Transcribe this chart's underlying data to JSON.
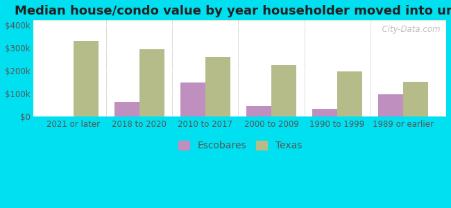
{
  "title": "Median house/condo value by year householder moved into unit",
  "categories": [
    "2021 or later",
    "2018 to 2020",
    "2010 to 2017",
    "2000 to 2009",
    "1990 to 1999",
    "1989 or earlier"
  ],
  "escobares": [
    0,
    65000,
    148000,
    45000,
    35000,
    97000
  ],
  "texas": [
    330000,
    295000,
    260000,
    225000,
    197000,
    152000
  ],
  "escobares_color": "#bf8fbf",
  "texas_color": "#b5bc8a",
  "background_outer": "#00e0f0",
  "yticks": [
    0,
    100000,
    200000,
    300000,
    400000
  ],
  "ytick_labels": [
    "$0",
    "$100k",
    "$200k",
    "$300k",
    "$400k"
  ],
  "ylim": [
    0,
    420000
  ],
  "watermark": "  City-Data.com",
  "bar_width": 0.38,
  "title_fontsize": 13,
  "tick_fontsize": 8.5,
  "legend_fontsize": 10
}
